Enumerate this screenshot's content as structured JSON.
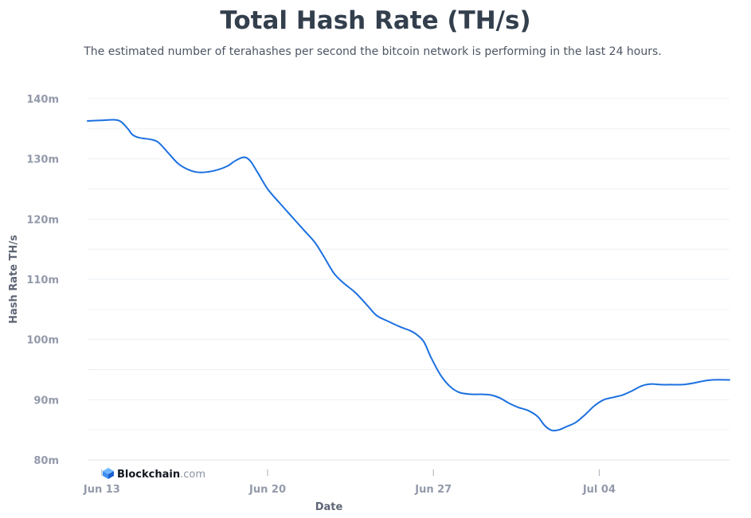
{
  "brand": {
    "name": "Blockchain",
    "suffix": ".com"
  },
  "chart_data": {
    "type": "line",
    "title": "Total Hash Rate (TH/s)",
    "subtitle": "The estimated number of terahashes per second the bitcoin network is performing in the last 24 hours.",
    "xlabel": "Date",
    "ylabel": "Hash Rate TH/s",
    "x_ticks": [
      {
        "label": "Jun 13",
        "day": 0
      },
      {
        "label": "Jun 20",
        "day": 7
      },
      {
        "label": "Jun 27",
        "day": 14
      },
      {
        "label": "Jul 04",
        "day": 21
      }
    ],
    "y_ticks": [
      {
        "label": "140m",
        "value": 140
      },
      {
        "label": "130m",
        "value": 130
      },
      {
        "label": "120m",
        "value": 120
      },
      {
        "label": "110m",
        "value": 110
      },
      {
        "label": "100m",
        "value": 100
      },
      {
        "label": "90m",
        "value": 90
      },
      {
        "label": "80m",
        "value": 80
      }
    ],
    "grid": true,
    "ylim": [
      80,
      140
    ],
    "xlim": [
      -0.6,
      26.5
    ],
    "line_color": "#1b70e0",
    "series": [
      {
        "name": "",
        "points": [
          [
            -0.6,
            136.3
          ],
          [
            0.0,
            136.4
          ],
          [
            0.5,
            136.5
          ],
          [
            0.8,
            136.2
          ],
          [
            1.1,
            135.0
          ],
          [
            1.3,
            134.0
          ],
          [
            1.6,
            133.5
          ],
          [
            2.1,
            133.2
          ],
          [
            2.4,
            132.7
          ],
          [
            2.8,
            131.0
          ],
          [
            3.2,
            129.3
          ],
          [
            3.6,
            128.3
          ],
          [
            4.0,
            127.8
          ],
          [
            4.4,
            127.8
          ],
          [
            4.9,
            128.2
          ],
          [
            5.3,
            128.8
          ],
          [
            5.6,
            129.6
          ],
          [
            5.9,
            130.2
          ],
          [
            6.1,
            130.2
          ],
          [
            6.3,
            129.5
          ],
          [
            6.6,
            127.6
          ],
          [
            7.0,
            125.0
          ],
          [
            7.5,
            122.7
          ],
          [
            8.0,
            120.5
          ],
          [
            8.5,
            118.3
          ],
          [
            9.0,
            116.1
          ],
          [
            9.4,
            113.6
          ],
          [
            9.8,
            111.0
          ],
          [
            10.2,
            109.4
          ],
          [
            10.7,
            107.8
          ],
          [
            11.2,
            105.7
          ],
          [
            11.6,
            104.0
          ],
          [
            12.1,
            103.0
          ],
          [
            12.6,
            102.1
          ],
          [
            13.0,
            101.5
          ],
          [
            13.3,
            100.8
          ],
          [
            13.6,
            99.6
          ],
          [
            13.9,
            97.0
          ],
          [
            14.3,
            94.1
          ],
          [
            14.7,
            92.2
          ],
          [
            15.1,
            91.2
          ],
          [
            15.6,
            90.9
          ],
          [
            16.0,
            90.9
          ],
          [
            16.4,
            90.8
          ],
          [
            16.8,
            90.3
          ],
          [
            17.2,
            89.4
          ],
          [
            17.6,
            88.7
          ],
          [
            18.0,
            88.2
          ],
          [
            18.4,
            87.2
          ],
          [
            18.7,
            85.7
          ],
          [
            19.0,
            84.9
          ],
          [
            19.3,
            85.0
          ],
          [
            19.6,
            85.5
          ],
          [
            20.0,
            86.2
          ],
          [
            20.4,
            87.5
          ],
          [
            20.8,
            89.0
          ],
          [
            21.2,
            90.0
          ],
          [
            21.6,
            90.4
          ],
          [
            22.0,
            90.8
          ],
          [
            22.4,
            91.5
          ],
          [
            22.8,
            92.3
          ],
          [
            23.2,
            92.6
          ],
          [
            23.6,
            92.5
          ],
          [
            24.0,
            92.5
          ],
          [
            24.5,
            92.5
          ],
          [
            24.9,
            92.7
          ],
          [
            25.4,
            93.1
          ],
          [
            25.8,
            93.3
          ],
          [
            26.5,
            93.3
          ]
        ]
      }
    ]
  }
}
